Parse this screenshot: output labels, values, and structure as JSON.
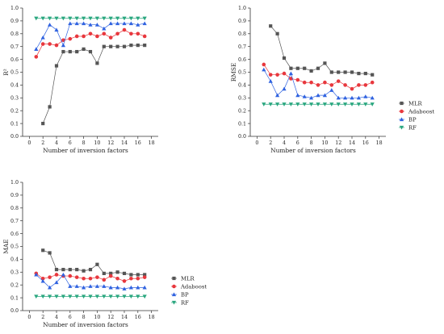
{
  "figure": {
    "colors": {
      "MLR": "#555555",
      "Adaboost": "#e8373d",
      "BP": "#2f62e0",
      "RF": "#2aa77f"
    },
    "markers": {
      "MLR": "square",
      "Adaboost": "circle",
      "BP": "triangle-up",
      "RF": "triangle-down"
    }
  },
  "chart_data": [
    {
      "type": "line",
      "title": "",
      "xlabel": "Number of inversion factors",
      "ylabel": "R²",
      "xlim": [
        -1,
        19
      ],
      "ylim": [
        0,
        1.0
      ],
      "xticks": [
        "0",
        "2",
        "4",
        "6",
        "8",
        "10",
        "12",
        "14",
        "16",
        "18"
      ],
      "yticks": [
        "0.0",
        "0.1",
        "0.2",
        "0.3",
        "0.4",
        "0.5",
        "0.6",
        "0.7",
        "0.8",
        "0.9",
        "1.0"
      ],
      "legend": "none",
      "grid": false,
      "series": [
        {
          "name": "MLR",
          "x": [
            2,
            3,
            4,
            5,
            6,
            7,
            8,
            9,
            10,
            11,
            12,
            13,
            14,
            15,
            16,
            17
          ],
          "values": [
            0.1,
            0.23,
            0.55,
            0.66,
            0.66,
            0.66,
            0.68,
            0.66,
            0.57,
            0.7,
            0.7,
            0.7,
            0.7,
            0.71,
            0.71,
            0.71
          ]
        },
        {
          "name": "Adaboost",
          "x": [
            1,
            2,
            3,
            4,
            5,
            6,
            7,
            8,
            9,
            10,
            11,
            12,
            13,
            14,
            15,
            16,
            17
          ],
          "values": [
            0.62,
            0.72,
            0.72,
            0.71,
            0.75,
            0.76,
            0.78,
            0.78,
            0.8,
            0.78,
            0.8,
            0.77,
            0.8,
            0.83,
            0.8,
            0.8,
            0.78
          ]
        },
        {
          "name": "BP",
          "x": [
            1,
            2,
            3,
            4,
            5,
            6,
            7,
            8,
            9,
            10,
            11,
            12,
            13,
            14,
            15,
            16,
            17
          ],
          "values": [
            0.68,
            0.77,
            0.87,
            0.83,
            0.71,
            0.88,
            0.88,
            0.88,
            0.87,
            0.87,
            0.84,
            0.88,
            0.88,
            0.88,
            0.88,
            0.87,
            0.88
          ]
        },
        {
          "name": "RF",
          "x": [
            1,
            2,
            3,
            4,
            5,
            6,
            7,
            8,
            9,
            10,
            11,
            12,
            13,
            14,
            15,
            16,
            17
          ],
          "values": [
            0.92,
            0.92,
            0.92,
            0.92,
            0.92,
            0.92,
            0.92,
            0.92,
            0.92,
            0.92,
            0.92,
            0.92,
            0.92,
            0.92,
            0.92,
            0.92,
            0.92
          ]
        }
      ]
    },
    {
      "type": "line",
      "title": "",
      "xlabel": "Number of inversion factors",
      "ylabel": "RMSE",
      "xlim": [
        -1,
        19
      ],
      "ylim": [
        0,
        1.0
      ],
      "xticks": [
        "0",
        "2",
        "4",
        "6",
        "8",
        "10",
        "12",
        "14",
        "16",
        "18"
      ],
      "yticks": [
        "0.0",
        "0.1",
        "0.2",
        "0.3",
        "0.4",
        "0.5",
        "0.6",
        "0.7",
        "0.8",
        "0.9",
        "1.0"
      ],
      "legend": "right",
      "grid": false,
      "series": [
        {
          "name": "MLR",
          "x": [
            2,
            3,
            4,
            5,
            6,
            7,
            8,
            9,
            10,
            11,
            12,
            13,
            14,
            15,
            16,
            17
          ],
          "values": [
            0.86,
            0.8,
            0.61,
            0.53,
            0.53,
            0.53,
            0.51,
            0.53,
            0.57,
            0.5,
            0.5,
            0.5,
            0.5,
            0.49,
            0.49,
            0.48
          ]
        },
        {
          "name": "Adaboost",
          "x": [
            1,
            2,
            3,
            4,
            5,
            6,
            7,
            8,
            9,
            10,
            11,
            12,
            13,
            14,
            15,
            16,
            17
          ],
          "values": [
            0.56,
            0.48,
            0.48,
            0.49,
            0.45,
            0.44,
            0.42,
            0.42,
            0.4,
            0.42,
            0.4,
            0.43,
            0.4,
            0.37,
            0.4,
            0.4,
            0.42
          ]
        },
        {
          "name": "BP",
          "x": [
            1,
            2,
            3,
            4,
            5,
            6,
            7,
            8,
            9,
            10,
            11,
            12,
            13,
            14,
            15,
            16,
            17
          ],
          "values": [
            0.52,
            0.43,
            0.32,
            0.37,
            0.49,
            0.32,
            0.31,
            0.3,
            0.32,
            0.32,
            0.36,
            0.3,
            0.3,
            0.3,
            0.3,
            0.31,
            0.3
          ]
        },
        {
          "name": "RF",
          "x": [
            1,
            2,
            3,
            4,
            5,
            6,
            7,
            8,
            9,
            10,
            11,
            12,
            13,
            14,
            15,
            16,
            17
          ],
          "values": [
            0.25,
            0.25,
            0.25,
            0.25,
            0.25,
            0.25,
            0.25,
            0.25,
            0.25,
            0.25,
            0.25,
            0.25,
            0.25,
            0.25,
            0.25,
            0.25,
            0.25
          ]
        }
      ]
    },
    {
      "type": "line",
      "title": "",
      "xlabel": "Number of inversion factors",
      "ylabel": "MAE",
      "xlim": [
        -1,
        19
      ],
      "ylim": [
        0,
        1.0
      ],
      "xticks": [
        "0",
        "2",
        "4",
        "6",
        "8",
        "10",
        "12",
        "14",
        "16",
        "18"
      ],
      "yticks": [
        "0.0",
        "0.1",
        "0.2",
        "0.3",
        "0.4",
        "0.5",
        "0.6",
        "0.7",
        "0.8",
        "0.9",
        "1.0"
      ],
      "legend": "right",
      "grid": false,
      "series": [
        {
          "name": "MLR",
          "x": [
            2,
            3,
            4,
            5,
            6,
            7,
            8,
            9,
            10,
            11,
            12,
            13,
            14,
            15,
            16,
            17
          ],
          "values": [
            0.47,
            0.45,
            0.32,
            0.32,
            0.32,
            0.32,
            0.31,
            0.32,
            0.36,
            0.29,
            0.29,
            0.3,
            0.29,
            0.28,
            0.28,
            0.28
          ]
        },
        {
          "name": "Adaboost",
          "x": [
            1,
            2,
            3,
            4,
            5,
            6,
            7,
            8,
            9,
            10,
            11,
            12,
            13,
            14,
            15,
            16,
            17
          ],
          "values": [
            0.29,
            0.25,
            0.26,
            0.28,
            0.27,
            0.27,
            0.26,
            0.25,
            0.25,
            0.26,
            0.24,
            0.27,
            0.25,
            0.23,
            0.25,
            0.25,
            0.26
          ]
        },
        {
          "name": "BP",
          "x": [
            1,
            2,
            3,
            4,
            5,
            6,
            7,
            8,
            9,
            10,
            11,
            12,
            13,
            14,
            15,
            16,
            17
          ],
          "values": [
            0.28,
            0.23,
            0.18,
            0.22,
            0.28,
            0.19,
            0.19,
            0.18,
            0.19,
            0.19,
            0.19,
            0.18,
            0.18,
            0.17,
            0.18,
            0.18,
            0.18
          ]
        },
        {
          "name": "RF",
          "x": [
            1,
            2,
            3,
            4,
            5,
            6,
            7,
            8,
            9,
            10,
            11,
            12,
            13,
            14,
            15,
            16,
            17
          ],
          "values": [
            0.11,
            0.11,
            0.11,
            0.11,
            0.11,
            0.11,
            0.11,
            0.11,
            0.11,
            0.11,
            0.11,
            0.11,
            0.11,
            0.11,
            0.11,
            0.11,
            0.11
          ]
        }
      ]
    }
  ]
}
